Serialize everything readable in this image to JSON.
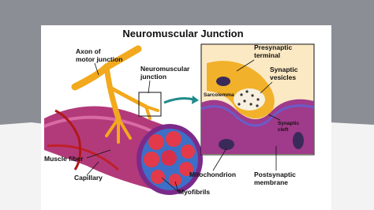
{
  "title": "Neuromuscular Junction",
  "labels": {
    "axon": [
      "Axon of",
      "motor junction"
    ],
    "junction": [
      "Neuromuscular",
      "junction"
    ],
    "presynaptic": [
      "Presynaptic",
      "terminal"
    ],
    "vesicles": [
      "Synaptic",
      "vesicles"
    ],
    "sarcolemma": "Sarcolemma",
    "cleft": [
      "Synaptic",
      "cleft"
    ],
    "muscle_fiber": "Muscle fiber",
    "capillary": "Capillary",
    "mitochondrion": "Mitochondrion",
    "postsynaptic": [
      "Postsynaptic",
      "membrane"
    ],
    "myofibrils": "Myofibrils"
  }
}
